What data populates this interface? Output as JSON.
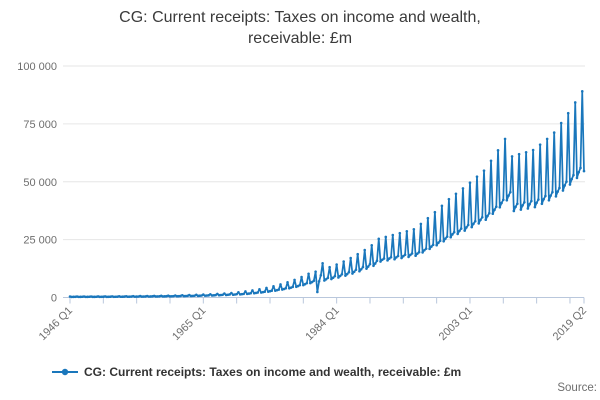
{
  "title": "CG: Current receipts: Taxes on income and wealth, receivable: £m",
  "source_label": "Source:",
  "colors": {
    "series": "#1a77bc",
    "gridline": "#e6e6e6",
    "axis": "#b9c7dc",
    "tick_label": "#6e6e6e",
    "title_text": "#3b3b3b"
  },
  "chart_data": {
    "type": "line",
    "title": "CG: Current receipts: Taxes on income and wealth, receivable: £m",
    "xlabel": "",
    "ylabel": "",
    "ylim": [
      0,
      100000
    ],
    "grid": "horizontal",
    "legend_position": "bottom",
    "frequency": "quarterly",
    "x_start_label": "1946 Q1",
    "x_end_label": "2019 Q2",
    "y_ticks": [
      {
        "value": 0,
        "label": "0"
      },
      {
        "value": 25000,
        "label": "25 000"
      },
      {
        "value": 50000,
        "label": "50 000"
      },
      {
        "value": 75000,
        "label": "75 000"
      },
      {
        "value": 100000,
        "label": "100 000"
      }
    ],
    "x_tick_indices": [
      0,
      19,
      38,
      57,
      76,
      95,
      114,
      133,
      152,
      171,
      190,
      209,
      228,
      247,
      266,
      285,
      293
    ],
    "x_tick_labels": {
      "0": "1946 Q1",
      "76": "1965 Q1",
      "152": "1984 Q1",
      "228": "2003 Q1",
      "293": "2019 Q2"
    },
    "series": [
      {
        "name": "CG: Current receipts: Taxes on income and wealth, receivable: £m",
        "color": "#1a77bc",
        "start": "1946 Q1",
        "end": "2019 Q2",
        "values": [
          416,
          262,
          282,
          314,
          423,
          267,
          286,
          319,
          429,
          271,
          290,
          323,
          436,
          275,
          295,
          328,
          442,
          279,
          299,
          333,
          464,
          293,
          314,
          350,
          488,
          308,
          330,
          368,
          514,
          324,
          348,
          387,
          542,
          342,
          367,
          409,
          572,
          361,
          387,
          431,
          610,
          385,
          413,
          460,
          651,
          411,
          441,
          491,
          696,
          439,
          471,
          524,
          742,
          468,
          502,
          560,
          793,
          500,
          537,
          598,
          868,
          548,
          588,
          655,
          952,
          600,
          644,
          717,
          1043,
          658,
          706,
          786,
          1140,
          719,
          772,
          859,
          1248,
          787,
          845,
          941,
          1394,
          879,
          943,
          1051,
          1556,
          982,
          1053,
          1173,
          1729,
          1091,
          1170,
          1303,
          1924,
          1214,
          1302,
          1450,
          2228,
          1353,
          1452,
          1568,
          2606,
          1583,
          1698,
          1834,
          3051,
          1853,
          1989,
          2147,
          3564,
          2165,
          2323,
          2508,
          4158,
          2526,
          2710,
          2926,
          4860,
          2952,
          3168,
          3420,
          5643,
          3428,
          3678,
          3971,
          6548,
          3977,
          4268,
          4608,
          7601,
          4617,
          4954,
          5349,
          8829,
          5363,
          5755,
          6213,
          10260,
          6232,
          6688,
          7220,
          11138,
          2400,
          7000,
          9600,
          14800,
          7339,
          7876,
          8503,
          13122,
          7970,
          8554,
          9234,
          14256,
          8659,
          9293,
          10032,
          15525,
          9430,
          10120,
          10925,
          17037,
          10348,
          11106,
          11989,
          18698,
          11357,
          12188,
          13158,
          20520,
          12464,
          13376,
          14440,
          22545,
          13694,
          14696,
          15865,
          25345,
          15540,
          16280,
          16835,
          26167,
          16044,
          16808,
          17381,
          26989,
          16548,
          17336,
          17927,
          27784,
          17035,
          17846,
          18455,
          28606,
          17539,
          18374,
          19001,
          29455,
          18060,
          18920,
          19565,
          31784,
          19488,
          20416,
          21112,
          34250,
          21000,
          22000,
          22750,
          36853,
          22596,
          23672,
          24479,
          39593,
          24276,
          25432,
          26299,
          42470,
          26040,
          27280,
          28210,
          44799,
          27468,
          28776,
          29757,
          47128,
          28896,
          30272,
          31304,
          49594,
          30408,
          31856,
          32942,
          52197,
          32004,
          33528,
          34671,
          54800,
          33600,
          35200,
          36400,
          59047,
          36204,
          37928,
          39221,
          63568,
          38976,
          40832,
          42224,
          68500,
          42000,
          44000,
          45500,
          60965,
          37380,
          39160,
          40495,
          61924,
          37968,
          39776,
          41132,
          62746,
          38472,
          40304,
          41678,
          63705,
          39060,
          40920,
          42315,
          66034,
          40488,
          42416,
          43862,
          68500,
          42000,
          44000,
          45500,
          71240,
          43680,
          45760,
          47320,
          75350,
          46200,
          48400,
          50050,
          79597,
          48804,
          51128,
          52871,
          84255,
          51660,
          54120,
          55965,
          89050,
          54600
        ]
      }
    ]
  }
}
